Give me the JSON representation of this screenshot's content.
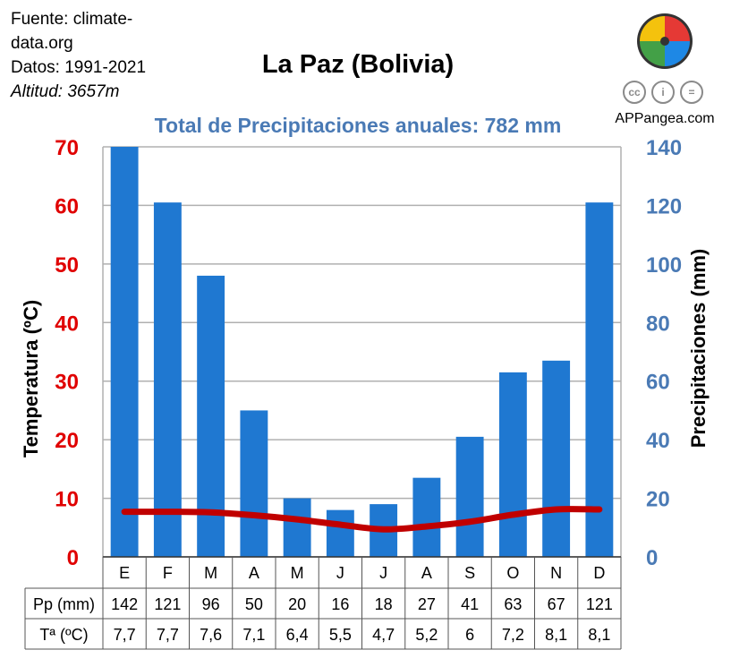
{
  "info": {
    "source_line1": "Fuente: climate-",
    "source_line2": "data.org",
    "period": "Datos: 1991-2021",
    "altitude": "Altitud: 3657m"
  },
  "title": "La Paz (Bolivia)",
  "subtitle": "Total de Precipitaciones anuales: 782 mm",
  "brand": {
    "name": "APPangea.com",
    "cc_icons": [
      "cc",
      "i",
      "="
    ]
  },
  "colors": {
    "bars": "#1f78d1",
    "temperature_line": "#c00000",
    "left_axis": "#e00000",
    "right_axis": "#4a7ab5",
    "grid": "#b0b0b0",
    "logo": [
      "#e53935",
      "#f4c20d",
      "#43a047",
      "#1e88e5"
    ]
  },
  "chart_data": {
    "type": "bar",
    "title": "La Paz (Bolivia)",
    "subtitle": "Total de Precipitaciones anuales: 782 mm",
    "categories": [
      "E",
      "F",
      "M",
      "A",
      "M",
      "J",
      "J",
      "A",
      "S",
      "O",
      "N",
      "D"
    ],
    "ylabel_left": "Temperatura (ºC)",
    "ylabel_right": "Precipitaciones (mm)",
    "ylim_left": [
      0,
      70
    ],
    "ylim_right": [
      0,
      140
    ],
    "yticks_left": [
      0,
      10,
      20,
      30,
      40,
      50,
      60,
      70
    ],
    "yticks_right": [
      0,
      20,
      40,
      60,
      80,
      100,
      120,
      140
    ],
    "grid": true,
    "series": [
      {
        "name": "Pp (mm)",
        "type": "bar",
        "axis": "right",
        "values": [
          142,
          121,
          96,
          50,
          20,
          16,
          18,
          27,
          41,
          63,
          67,
          121
        ]
      },
      {
        "name": "Tª (ºC)",
        "type": "line",
        "axis": "left",
        "values": [
          7.7,
          7.7,
          7.6,
          7.1,
          6.4,
          5.5,
          4.7,
          5.2,
          6,
          7.2,
          8.1,
          8.1
        ]
      }
    ],
    "table": {
      "row_labels": [
        "Pp (mm)",
        "Tª (ºC)"
      ],
      "rows": [
        [
          "142",
          "121",
          "96",
          "50",
          "20",
          "16",
          "18",
          "27",
          "41",
          "63",
          "67",
          "121"
        ],
        [
          "7,7",
          "7,7",
          "7,6",
          "7,1",
          "6,4",
          "5,5",
          "4,7",
          "5,2",
          "6",
          "7,2",
          "8,1",
          "8,1"
        ]
      ]
    }
  }
}
